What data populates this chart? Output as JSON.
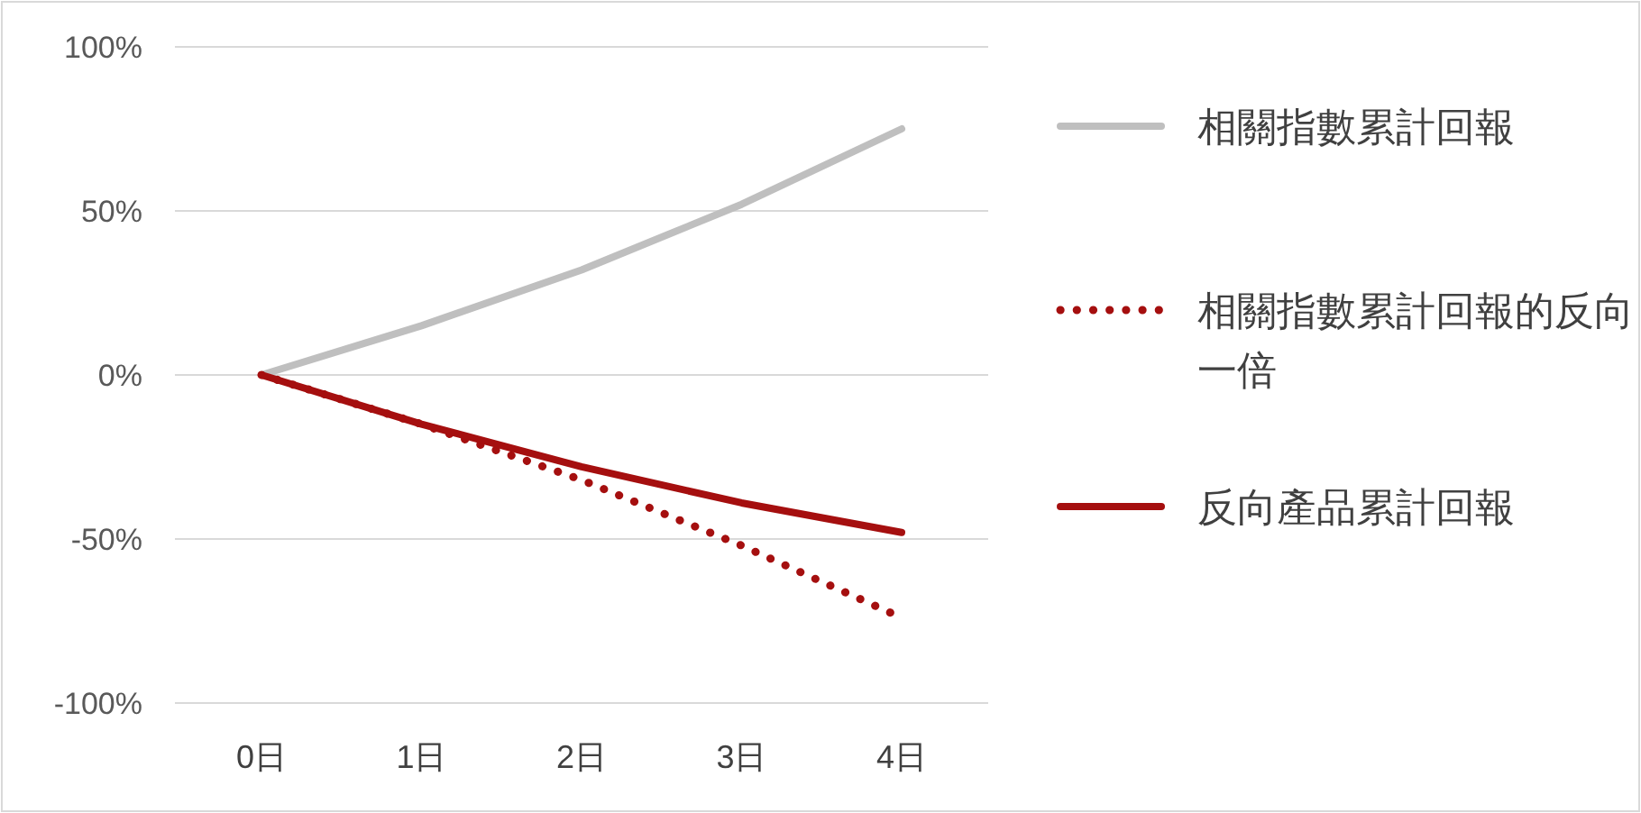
{
  "chart_data": {
    "type": "line",
    "categories": [
      "0日",
      "1日",
      "2日",
      "3日",
      "4日"
    ],
    "ylim": [
      -100,
      100
    ],
    "yticks": [
      {
        "value": -100,
        "label": "-100%"
      },
      {
        "value": -50,
        "label": "-50%"
      },
      {
        "value": 0,
        "label": "0%"
      },
      {
        "value": 50,
        "label": "50%"
      },
      {
        "value": 100,
        "label": "100%"
      }
    ],
    "grid": "y",
    "legend": "right",
    "marker": "none",
    "series": [
      {
        "name": "相關指數累計回報",
        "color": "#bfbfbf",
        "line_style": "solid",
        "values": [
          0,
          15,
          32,
          52,
          75
        ]
      },
      {
        "name": "相關指數累計回報的反向一倍",
        "color": "#a50f0f",
        "line_style": "dotted",
        "values": [
          0,
          -15,
          -32,
          -52,
          -74
        ]
      },
      {
        "name": "反向產品累計回報",
        "color": "#a50f0f",
        "line_style": "solid",
        "values": [
          0,
          -15,
          -28,
          -39,
          -48
        ]
      }
    ]
  }
}
